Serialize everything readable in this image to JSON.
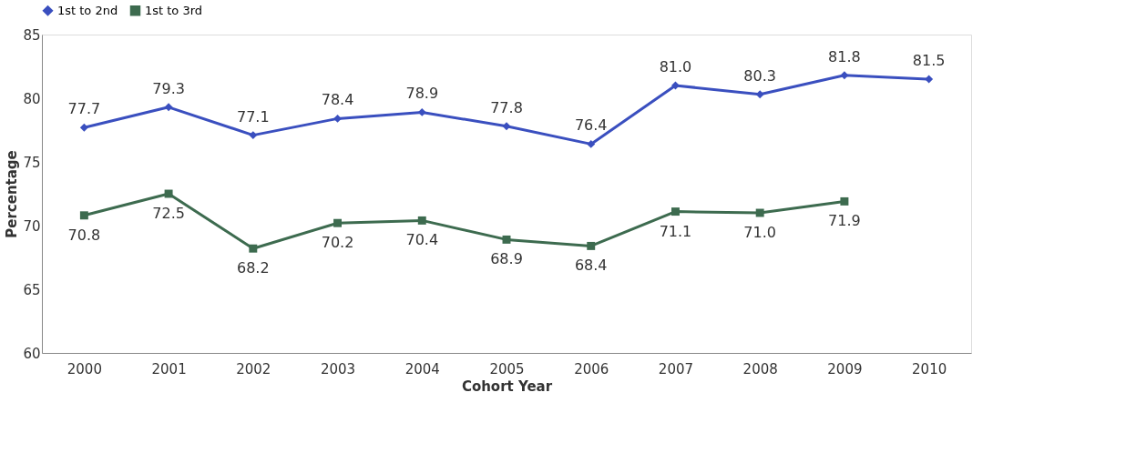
{
  "chart_data": {
    "type": "line",
    "xlabel": "Cohort Year",
    "ylabel": "Percentage",
    "categories": [
      "2000",
      "2001",
      "2002",
      "2003",
      "2004",
      "2005",
      "2006",
      "2007",
      "2008",
      "2009",
      "2010"
    ],
    "series": [
      {
        "name": "1st to 2nd",
        "color": "#3a4fbf",
        "marker": "diamond",
        "values": [
          77.7,
          79.3,
          77.1,
          78.4,
          78.9,
          77.8,
          76.4,
          81.0,
          80.3,
          81.8,
          81.5
        ],
        "value_labels": [
          "77.7",
          "79.3",
          "77.1",
          "78.4",
          "78.9",
          "77.8",
          "76.4",
          "81.0",
          "80.3",
          "81.8",
          "81.5"
        ]
      },
      {
        "name": "1st to 3rd",
        "color": "#3d6b4f",
        "marker": "square",
        "values": [
          70.8,
          72.5,
          68.2,
          70.2,
          70.4,
          68.9,
          68.4,
          71.1,
          71.0,
          71.9,
          null
        ],
        "value_labels": [
          "70.8",
          "72.5",
          "68.2",
          "70.2",
          "70.4",
          "68.9",
          "68.4",
          "71.1",
          "71.0",
          "71.9",
          null
        ]
      }
    ],
    "ylim": [
      60,
      85
    ],
    "yticks": [
      60,
      65,
      70,
      75,
      80,
      85
    ],
    "grid": false,
    "legend": "top",
    "line_style": "solid"
  }
}
